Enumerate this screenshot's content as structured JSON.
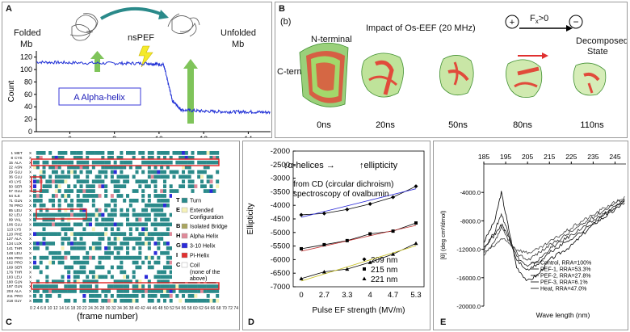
{
  "panel_labels": {
    "a": "A",
    "b": "B",
    "c": "C",
    "d": "D",
    "e": "E"
  },
  "panel_a": {
    "left_label_1": "Folded",
    "left_label_2": "Mb",
    "center_label": "nsPEF",
    "right_label_1": "Unfolded",
    "right_label_2": "Mb",
    "box_label": "A Alpha-helix",
    "colors": {
      "line": "#1f2fd6",
      "box_border": "#3a3ad8",
      "arrow": "#7fc45a",
      "bolt": "#f4ea2a",
      "curve": "#2a8a8a"
    }
  },
  "panel_b": {
    "sub_label": "(b)",
    "title": "Impact of Os-EEF (20 MHz)",
    "n_terminal": "N-terminal",
    "c_terminal": "C-terminal",
    "decomposed_1": "Decomposed",
    "decomposed_2": "State",
    "force_label": "F",
    "force_sub": "x",
    "force_rel": ">0",
    "plus": "+",
    "minus": "−",
    "x_mark": "X",
    "times": [
      "0ns",
      "20ns",
      "50ns",
      "80ns",
      "110ns"
    ]
  },
  "panel_c": {
    "residues": [
      [
        "1",
        "MET"
      ],
      [
        "8",
        "CYS"
      ],
      [
        "15",
        "ALA"
      ],
      [
        "22",
        "ASN"
      ],
      [
        "29",
        "GLU"
      ],
      [
        "36",
        "GLU"
      ],
      [
        "43",
        "LYS"
      ],
      [
        "50",
        "SER"
      ],
      [
        "57",
        "GLU"
      ],
      [
        "64",
        "ILE"
      ],
      [
        "71",
        "GLN"
      ],
      [
        "78",
        "PRO"
      ],
      [
        "85",
        "LEU"
      ],
      [
        "92",
        "LEU"
      ],
      [
        "99",
        "VAL"
      ],
      [
        "106",
        "GLU"
      ],
      [
        "113",
        "LYS"
      ],
      [
        "120",
        "PHE"
      ],
      [
        "127",
        "ALA"
      ],
      [
        "134",
        "LUX"
      ],
      [
        "141",
        "THR"
      ],
      [
        "148",
        "LEU"
      ],
      [
        "155",
        "PRO"
      ],
      [
        "162",
        "PRO"
      ],
      [
        "169",
        "SER"
      ],
      [
        "176",
        "THR"
      ],
      [
        "183",
        "LEU"
      ],
      [
        "190",
        "GLN"
      ],
      [
        "197",
        "GLN"
      ],
      [
        "204",
        "ALA"
      ],
      [
        "211",
        "PRO"
      ],
      [
        "218",
        "GLY"
      ]
    ],
    "frame_ticks": "0 2 4 6 8 10 12 14 16 18 20 22 24 26 28 30 32 34 36 38 40 42 44 46 48 50 52 54 56 58 60 62 64 66 68 70 72 74 76 78 80 82 84 86 88 90 92 94 96 98 100 101 106 111 116",
    "x_label": "(frame number)",
    "legend": [
      {
        "key": "T",
        "label": "Turn",
        "color": "#2a8a8a"
      },
      {
        "key": "E",
        "label": "Extended",
        "label2": "Configuration",
        "color": "#f6f2b8"
      },
      {
        "key": "B",
        "label": "Isolated Bridge",
        "color": "#a9a560"
      },
      {
        "key": "H",
        "label": "Alpha Helix",
        "color": "#e08a9a"
      },
      {
        "key": "G",
        "label": "3-10 Helix",
        "color": "#2a2ad8"
      },
      {
        "key": "I",
        "label": "Pi-Helix",
        "color": "#e03030"
      },
      {
        "key": "C",
        "label": "Coil",
        "label2": "(none of the",
        "label3": "above)",
        "color": "#ffffff"
      }
    ]
  },
  "panel_d": {
    "note_1": "↓α-helices →",
    "note_2": "↑ellipticity",
    "note_3": "from CD (circular dichroism)",
    "note_4": "spectroscopy of ovalbumin"
  },
  "panel_e": {
    "wavelength_note": "Wave length (nm)"
  },
  "chart_data": [
    {
      "type": "line",
      "id": "A",
      "title": "",
      "xlabel": "",
      "ylabel": "Count",
      "xlim": [
        4.5,
        15
      ],
      "ylim": [
        0,
        130
      ],
      "xticks": [
        6,
        8,
        10,
        12,
        14
      ],
      "yticks": [
        0,
        20,
        40,
        60,
        80,
        100,
        120
      ],
      "series": [
        {
          "name": "A Alpha-helix",
          "x": [
            4.5,
            6,
            8,
            9.5,
            10.2,
            10.6,
            11,
            12,
            13,
            14,
            15
          ],
          "y": [
            112,
            111,
            110,
            110,
            108,
            50,
            35,
            33,
            32,
            32,
            31
          ]
        }
      ]
    },
    {
      "type": "line",
      "id": "D",
      "title": "",
      "xlabel": "Pulse EF strength (MV/m)",
      "ylabel": "Ellipticity",
      "categories": [
        "0",
        "2.7",
        "3.3",
        "4",
        "4.7",
        "5.3"
      ],
      "ylim": [
        -7000,
        -2000
      ],
      "yticks": [
        -7000,
        -6500,
        -6000,
        -5500,
        -5000,
        -4500,
        -4000,
        -3500,
        -3000,
        -2500,
        -2000
      ],
      "series": [
        {
          "name": "209 nm",
          "marker": "diamond",
          "values": [
            -4350,
            -4300,
            -4150,
            -3950,
            -3700,
            -3300
          ]
        },
        {
          "name": "215 nm",
          "marker": "square",
          "values": [
            -5600,
            -5450,
            -5300,
            -5050,
            -4950,
            -4650
          ]
        },
        {
          "name": "221 nm",
          "marker": "triangle",
          "values": [
            -6700,
            -6450,
            -6350,
            -6100,
            -5800,
            -5400
          ]
        }
      ]
    },
    {
      "type": "line",
      "id": "E",
      "title": "",
      "xlabel": "Wave length (nm)",
      "ylabel": "[θ] (deg cm²/dmol)",
      "xlim": [
        185,
        250
      ],
      "ylim": [
        -20000,
        0
      ],
      "xticks": [
        185,
        195,
        205,
        215,
        225,
        235,
        245
      ],
      "yticks": [
        -20000,
        -16000,
        -12000,
        -8000,
        -4000
      ],
      "series": [
        {
          "name": "Control, RRA=100%",
          "x": [
            185,
            190,
            193,
            196,
            200,
            205,
            210,
            215,
            220,
            225,
            230,
            235,
            240,
            245,
            250
          ],
          "y": [
            -11000,
            -8000,
            -4000,
            -8500,
            -14500,
            -16500,
            -15500,
            -13500,
            -12500,
            -11500,
            -10000,
            -8500,
            -7500,
            -6500,
            -5000
          ]
        },
        {
          "name": "PEF-1, RRA=53.3%",
          "x": [
            185,
            190,
            193,
            196,
            200,
            205,
            210,
            215,
            220,
            225,
            230,
            235,
            240,
            245,
            250
          ],
          "y": [
            -12000,
            -9500,
            -7000,
            -9500,
            -13000,
            -14500,
            -13500,
            -12000,
            -11000,
            -10000,
            -9000,
            -8000,
            -7000,
            -6000,
            -5000
          ]
        },
        {
          "name": "PEF-2, RRA=27.8%",
          "x": [
            185,
            190,
            193,
            196,
            200,
            205,
            210,
            215,
            220,
            225,
            230,
            235,
            240,
            245,
            250
          ],
          "y": [
            -13000,
            -11000,
            -9000,
            -10500,
            -12500,
            -13500,
            -12500,
            -11500,
            -10500,
            -9500,
            -8500,
            -7500,
            -6500,
            -5500,
            -4800
          ]
        },
        {
          "name": "PEF-3, RRA=6.1%",
          "x": [
            185,
            190,
            193,
            196,
            200,
            205,
            210,
            215,
            220,
            225,
            230,
            235,
            240,
            245,
            250
          ],
          "y": [
            -12500,
            -11500,
            -10500,
            -11000,
            -12000,
            -12500,
            -12000,
            -11000,
            -10000,
            -9000,
            -8000,
            -7200,
            -6200,
            -5400,
            -4600
          ]
        },
        {
          "name": "Heat, RRA=47.0%",
          "x": [
            185,
            190,
            193,
            196,
            200,
            205,
            210,
            215,
            220,
            225,
            230,
            235,
            240,
            245,
            250
          ],
          "y": [
            -11500,
            -10000,
            -8500,
            -10000,
            -13500,
            -15000,
            -14000,
            -12500,
            -11500,
            -10500,
            -9500,
            -8300,
            -7200,
            -6200,
            -5200
          ]
        }
      ]
    }
  ]
}
